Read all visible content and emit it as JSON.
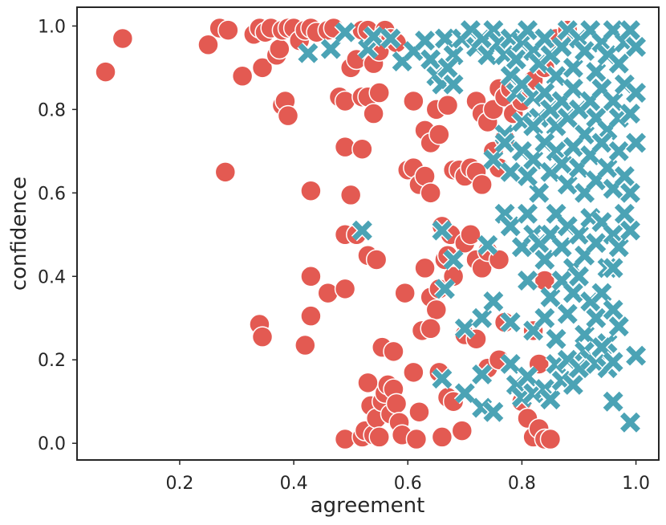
{
  "chart_data": {
    "type": "scatter",
    "xlabel": "agreement",
    "ylabel": "confidence",
    "xlim": [
      0.02,
      1.04
    ],
    "ylim": [
      -0.04,
      1.045
    ],
    "xticks": [
      0.2,
      0.4,
      0.6,
      0.8,
      1.0
    ],
    "yticks": [
      0.0,
      0.2,
      0.4,
      0.6,
      0.8,
      1.0
    ],
    "xtick_labels": [
      "0.2",
      "0.4",
      "0.6",
      "0.8",
      "1.0"
    ],
    "ytick_labels": [
      "0.0",
      "0.2",
      "0.4",
      "0.6",
      "0.8",
      "1.0"
    ],
    "grid": false,
    "legend": false,
    "series": [
      {
        "marker": "circle",
        "color": "#e35a52",
        "points": [
          [
            0.07,
            0.89
          ],
          [
            0.1,
            0.97
          ],
          [
            0.25,
            0.955
          ],
          [
            0.27,
            0.995
          ],
          [
            0.285,
            0.99
          ],
          [
            0.31,
            0.88
          ],
          [
            0.33,
            0.98
          ],
          [
            0.34,
            0.995
          ],
          [
            0.345,
            0.9
          ],
          [
            0.35,
            0.985
          ],
          [
            0.36,
            0.995
          ],
          [
            0.37,
            0.93
          ],
          [
            0.375,
            0.945
          ],
          [
            0.38,
            0.99
          ],
          [
            0.39,
            0.995
          ],
          [
            0.4,
            0.995
          ],
          [
            0.41,
            0.965
          ],
          [
            0.42,
            0.99
          ],
          [
            0.43,
            0.995
          ],
          [
            0.44,
            0.985
          ],
          [
            0.46,
            0.99
          ],
          [
            0.47,
            0.995
          ],
          [
            0.5,
            0.9
          ],
          [
            0.51,
            0.92
          ],
          [
            0.52,
            0.99
          ],
          [
            0.53,
            0.99
          ],
          [
            0.54,
            0.91
          ],
          [
            0.55,
            0.94
          ],
          [
            0.56,
            0.99
          ],
          [
            0.57,
            0.97
          ],
          [
            0.58,
            0.96
          ],
          [
            0.38,
            0.81
          ],
          [
            0.385,
            0.82
          ],
          [
            0.39,
            0.785
          ],
          [
            0.48,
            0.83
          ],
          [
            0.49,
            0.82
          ],
          [
            0.52,
            0.83
          ],
          [
            0.53,
            0.83
          ],
          [
            0.54,
            0.79
          ],
          [
            0.55,
            0.84
          ],
          [
            0.61,
            0.82
          ],
          [
            0.63,
            0.75
          ],
          [
            0.64,
            0.72
          ],
          [
            0.65,
            0.8
          ],
          [
            0.655,
            0.74
          ],
          [
            0.67,
            0.81
          ],
          [
            0.72,
            0.82
          ],
          [
            0.73,
            0.79
          ],
          [
            0.74,
            0.77
          ],
          [
            0.75,
            0.8
          ],
          [
            0.76,
            0.85
          ],
          [
            0.77,
            0.83
          ],
          [
            0.78,
            0.85
          ],
          [
            0.785,
            0.79
          ],
          [
            0.8,
            0.82
          ],
          [
            0.82,
            0.87
          ],
          [
            0.84,
            0.9
          ],
          [
            0.86,
            0.97
          ],
          [
            0.88,
            0.99
          ],
          [
            0.28,
            0.65
          ],
          [
            0.43,
            0.605
          ],
          [
            0.49,
            0.71
          ],
          [
            0.5,
            0.595
          ],
          [
            0.52,
            0.705
          ],
          [
            0.6,
            0.655
          ],
          [
            0.61,
            0.66
          ],
          [
            0.62,
            0.62
          ],
          [
            0.63,
            0.64
          ],
          [
            0.64,
            0.6
          ],
          [
            0.68,
            0.655
          ],
          [
            0.69,
            0.655
          ],
          [
            0.7,
            0.64
          ],
          [
            0.71,
            0.66
          ],
          [
            0.72,
            0.65
          ],
          [
            0.73,
            0.62
          ],
          [
            0.75,
            0.7
          ],
          [
            0.76,
            0.66
          ],
          [
            0.77,
            0.73
          ],
          [
            0.43,
            0.4
          ],
          [
            0.46,
            0.36
          ],
          [
            0.49,
            0.37
          ],
          [
            0.49,
            0.5
          ],
          [
            0.51,
            0.5
          ],
          [
            0.53,
            0.45
          ],
          [
            0.545,
            0.44
          ],
          [
            0.595,
            0.36
          ],
          [
            0.63,
            0.42
          ],
          [
            0.64,
            0.35
          ],
          [
            0.65,
            0.32
          ],
          [
            0.655,
            0.37
          ],
          [
            0.66,
            0.52
          ],
          [
            0.665,
            0.44
          ],
          [
            0.67,
            0.45
          ],
          [
            0.675,
            0.5
          ],
          [
            0.68,
            0.4
          ],
          [
            0.7,
            0.48
          ],
          [
            0.71,
            0.5
          ],
          [
            0.72,
            0.44
          ],
          [
            0.73,
            0.42
          ],
          [
            0.74,
            0.46
          ],
          [
            0.76,
            0.44
          ],
          [
            0.34,
            0.285
          ],
          [
            0.345,
            0.255
          ],
          [
            0.42,
            0.235
          ],
          [
            0.43,
            0.305
          ],
          [
            0.555,
            0.23
          ],
          [
            0.575,
            0.22
          ],
          [
            0.61,
            0.17
          ],
          [
            0.625,
            0.27
          ],
          [
            0.64,
            0.275
          ],
          [
            0.655,
            0.17
          ],
          [
            0.7,
            0.26
          ],
          [
            0.72,
            0.25
          ],
          [
            0.74,
            0.18
          ],
          [
            0.76,
            0.2
          ],
          [
            0.77,
            0.29
          ],
          [
            0.82,
            0.27
          ],
          [
            0.83,
            0.19
          ],
          [
            0.84,
            0.39
          ],
          [
            0.49,
            0.01
          ],
          [
            0.52,
            0.015
          ],
          [
            0.525,
            0.03
          ],
          [
            0.53,
            0.145
          ],
          [
            0.535,
            0.09
          ],
          [
            0.54,
            0.02
          ],
          [
            0.545,
            0.06
          ],
          [
            0.55,
            0.015
          ],
          [
            0.555,
            0.1
          ],
          [
            0.56,
            0.12
          ],
          [
            0.565,
            0.14
          ],
          [
            0.57,
            0.07
          ],
          [
            0.575,
            0.13
          ],
          [
            0.58,
            0.095
          ],
          [
            0.585,
            0.05
          ],
          [
            0.59,
            0.02
          ],
          [
            0.615,
            0.01
          ],
          [
            0.62,
            0.075
          ],
          [
            0.66,
            0.015
          ],
          [
            0.67,
            0.11
          ],
          [
            0.68,
            0.1
          ],
          [
            0.695,
            0.03
          ],
          [
            0.8,
            0.1
          ],
          [
            0.81,
            0.06
          ],
          [
            0.82,
            0.015
          ],
          [
            0.83,
            0.035
          ],
          [
            0.84,
            0.01
          ],
          [
            0.85,
            0.01
          ]
        ]
      },
      {
        "marker": "x",
        "color": "#4ba3b5",
        "points": [
          [
            0.425,
            0.935
          ],
          [
            0.465,
            0.945
          ],
          [
            0.49,
            0.985
          ],
          [
            0.53,
            0.945
          ],
          [
            0.54,
            0.975
          ],
          [
            0.57,
            0.97
          ],
          [
            0.59,
            0.915
          ],
          [
            0.61,
            0.94
          ],
          [
            0.63,
            0.965
          ],
          [
            0.64,
            0.92
          ],
          [
            0.65,
            0.88
          ],
          [
            0.665,
            0.97
          ],
          [
            0.68,
            0.93
          ],
          [
            0.695,
            0.97
          ],
          [
            0.71,
            0.99
          ],
          [
            0.72,
            0.95
          ],
          [
            0.73,
            0.97
          ],
          [
            0.74,
            0.93
          ],
          [
            0.75,
            0.99
          ],
          [
            0.76,
            0.96
          ],
          [
            0.77,
            0.93
          ],
          [
            0.78,
            0.97
          ],
          [
            0.79,
            0.92
          ],
          [
            0.8,
            0.96
          ],
          [
            0.81,
            0.99
          ],
          [
            0.82,
            0.94
          ],
          [
            0.83,
            0.91
          ],
          [
            0.84,
            0.97
          ],
          [
            0.85,
            0.93
          ],
          [
            0.86,
            0.88
          ],
          [
            0.87,
            0.95
          ],
          [
            0.88,
            0.99
          ],
          [
            0.89,
            0.9
          ],
          [
            0.9,
            0.97
          ],
          [
            0.91,
            0.94
          ],
          [
            0.92,
            0.99
          ],
          [
            0.93,
            0.89
          ],
          [
            0.94,
            0.96
          ],
          [
            0.95,
            0.93
          ],
          [
            0.96,
            0.99
          ],
          [
            0.97,
            0.91
          ],
          [
            0.98,
            0.96
          ],
          [
            0.99,
            0.99
          ],
          [
            1.0,
            0.95
          ],
          [
            0.66,
            0.86
          ],
          [
            0.67,
            0.9
          ],
          [
            0.68,
            0.86
          ],
          [
            0.78,
            0.88
          ],
          [
            0.79,
            0.84
          ],
          [
            0.8,
            0.86
          ],
          [
            0.82,
            0.83
          ],
          [
            0.83,
            0.78
          ],
          [
            0.84,
            0.84
          ],
          [
            0.85,
            0.8
          ],
          [
            0.86,
            0.76
          ],
          [
            0.87,
            0.82
          ],
          [
            0.88,
            0.78
          ],
          [
            0.89,
            0.85
          ],
          [
            0.9,
            0.8
          ],
          [
            0.91,
            0.74
          ],
          [
            0.92,
            0.82
          ],
          [
            0.93,
            0.78
          ],
          [
            0.94,
            0.85
          ],
          [
            0.95,
            0.75
          ],
          [
            0.96,
            0.82
          ],
          [
            0.97,
            0.78
          ],
          [
            0.98,
            0.86
          ],
          [
            0.99,
            0.79
          ],
          [
            1.0,
            0.84
          ],
          [
            0.77,
            0.74
          ],
          [
            0.8,
            0.77
          ],
          [
            0.82,
            0.76
          ],
          [
            0.75,
            0.68
          ],
          [
            0.77,
            0.72
          ],
          [
            0.78,
            0.65
          ],
          [
            0.8,
            0.7
          ],
          [
            0.82,
            0.68
          ],
          [
            0.84,
            0.72
          ],
          [
            0.85,
            0.65
          ],
          [
            0.86,
            0.7
          ],
          [
            0.87,
            0.67
          ],
          [
            0.88,
            0.62
          ],
          [
            0.89,
            0.71
          ],
          [
            0.9,
            0.66
          ],
          [
            0.91,
            0.6
          ],
          [
            0.92,
            0.69
          ],
          [
            0.93,
            0.63
          ],
          [
            0.94,
            0.72
          ],
          [
            0.95,
            0.66
          ],
          [
            0.96,
            0.61
          ],
          [
            0.97,
            0.7
          ],
          [
            0.98,
            0.64
          ],
          [
            0.99,
            0.6
          ],
          [
            1.0,
            0.72
          ],
          [
            0.83,
            0.6
          ],
          [
            0.81,
            0.64
          ],
          [
            0.52,
            0.51
          ],
          [
            0.66,
            0.51
          ],
          [
            0.68,
            0.44
          ],
          [
            0.74,
            0.475
          ],
          [
            0.77,
            0.55
          ],
          [
            0.78,
            0.52
          ],
          [
            0.8,
            0.47
          ],
          [
            0.81,
            0.55
          ],
          [
            0.82,
            0.5
          ],
          [
            0.83,
            0.48
          ],
          [
            0.84,
            0.44
          ],
          [
            0.85,
            0.5
          ],
          [
            0.86,
            0.55
          ],
          [
            0.87,
            0.47
          ],
          [
            0.88,
            0.52
          ],
          [
            0.89,
            0.42
          ],
          [
            0.9,
            0.5
          ],
          [
            0.91,
            0.45
          ],
          [
            0.92,
            0.54
          ],
          [
            0.93,
            0.48
          ],
          [
            0.94,
            0.53
          ],
          [
            0.95,
            0.42
          ],
          [
            0.96,
            0.5
          ],
          [
            0.97,
            0.47
          ],
          [
            0.98,
            0.55
          ],
          [
            0.99,
            0.51
          ],
          [
            0.96,
            0.42
          ],
          [
            0.665,
            0.37
          ],
          [
            0.7,
            0.275
          ],
          [
            0.73,
            0.3
          ],
          [
            0.75,
            0.34
          ],
          [
            0.78,
            0.29
          ],
          [
            0.81,
            0.39
          ],
          [
            0.82,
            0.27
          ],
          [
            0.84,
            0.3
          ],
          [
            0.85,
            0.35
          ],
          [
            0.86,
            0.25
          ],
          [
            0.87,
            0.39
          ],
          [
            0.88,
            0.31
          ],
          [
            0.89,
            0.36
          ],
          [
            0.9,
            0.4
          ],
          [
            0.91,
            0.26
          ],
          [
            0.92,
            0.34
          ],
          [
            0.93,
            0.3
          ],
          [
            0.94,
            0.36
          ],
          [
            0.95,
            0.24
          ],
          [
            0.96,
            0.32
          ],
          [
            0.97,
            0.28
          ],
          [
            0.66,
            0.155
          ],
          [
            0.7,
            0.12
          ],
          [
            0.73,
            0.165
          ],
          [
            0.73,
            0.085
          ],
          [
            0.75,
            0.075
          ],
          [
            0.78,
            0.19
          ],
          [
            0.79,
            0.14
          ],
          [
            0.8,
            0.11
          ],
          [
            0.81,
            0.16
          ],
          [
            0.82,
            0.12
          ],
          [
            0.84,
            0.13
          ],
          [
            0.85,
            0.105
          ],
          [
            0.86,
            0.19
          ],
          [
            0.87,
            0.15
          ],
          [
            0.88,
            0.2
          ],
          [
            0.89,
            0.14
          ],
          [
            0.9,
            0.18
          ],
          [
            0.91,
            0.22
          ],
          [
            0.92,
            0.2
          ],
          [
            0.93,
            0.19
          ],
          [
            0.94,
            0.23
          ],
          [
            0.95,
            0.18
          ],
          [
            0.96,
            0.195
          ],
          [
            0.96,
            0.1
          ],
          [
            0.99,
            0.05
          ],
          [
            1.0,
            0.21
          ]
        ]
      }
    ]
  }
}
